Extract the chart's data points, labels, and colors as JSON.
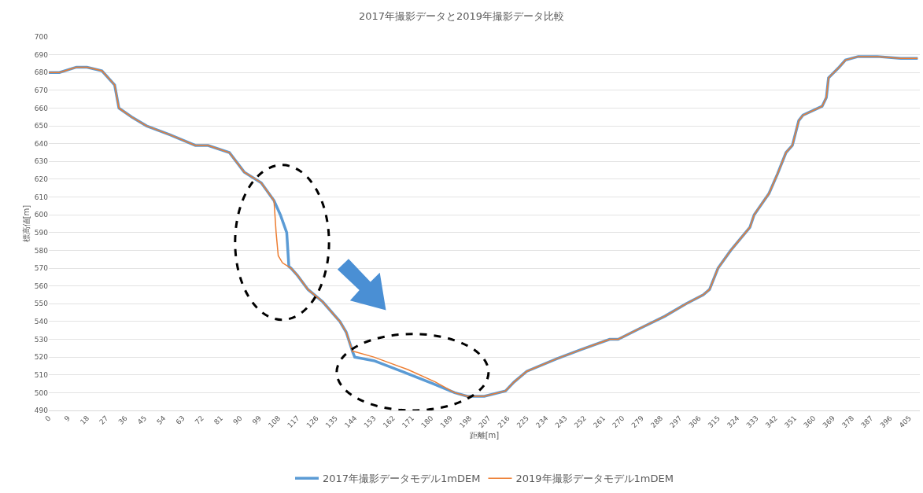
{
  "chart_data": {
    "type": "line",
    "title": "2017年撮影データと2019年撮影データ比較",
    "xlabel": "距離[m]",
    "ylabel": "標高値[m]",
    "xlim": [
      0,
      410
    ],
    "xticks": [
      0,
      9,
      18,
      27,
      36,
      45,
      54,
      63,
      72,
      81,
      90,
      99,
      108,
      117,
      126,
      135,
      144,
      153,
      162,
      171,
      180,
      189,
      198,
      207,
      216,
      225,
      234,
      243,
      252,
      261,
      270,
      279,
      288,
      297,
      306,
      315,
      324,
      333,
      342,
      351,
      360,
      369,
      378,
      387,
      396,
      405
    ],
    "ylim": [
      490,
      700
    ],
    "yticks": [
      490,
      500,
      510,
      520,
      530,
      540,
      550,
      560,
      570,
      580,
      590,
      600,
      610,
      620,
      630,
      640,
      650,
      660,
      670,
      680,
      690,
      700
    ],
    "grid": "y",
    "legend": "bottom",
    "line_style": "solid",
    "marker": "none",
    "series": [
      {
        "name": "2017年撮影データモデル1mDEM",
        "color": "#5b9bd5",
        "x": [
          0,
          5,
          13,
          18,
          25,
          31,
          33,
          39,
          46,
          57,
          69,
          75,
          85,
          92,
          100,
          106,
          109,
          112,
          113,
          114,
          117,
          122,
          129,
          137,
          140,
          143,
          144,
          153,
          166,
          181,
          191,
          197,
          205,
          215,
          219,
          225,
          239,
          250,
          264,
          268,
          278,
          290,
          300,
          308,
          311,
          315,
          321,
          330,
          332,
          339,
          343,
          347,
          350,
          353,
          355,
          364,
          366,
          367,
          372,
          375,
          381,
          390,
          401,
          409
        ],
        "values": [
          680,
          680,
          683,
          683,
          681,
          673,
          660,
          655,
          650,
          645,
          639,
          639,
          635,
          624,
          618,
          608,
          600,
          590,
          571,
          570,
          566,
          558,
          551,
          540,
          534,
          523,
          520,
          518,
          512,
          505,
          500,
          498,
          498,
          501,
          506,
          512,
          519,
          524,
          530,
          530,
          536,
          543,
          550,
          555,
          558,
          570,
          580,
          593,
          600,
          612,
          623,
          635,
          639,
          653,
          656,
          661,
          666,
          677,
          683,
          687,
          689,
          689,
          688,
          688
        ]
      },
      {
        "name": "2019年撮影データモデル1mDEM",
        "color": "#ed7d31",
        "x": [
          0,
          5,
          13,
          18,
          25,
          31,
          33,
          39,
          46,
          57,
          69,
          75,
          85,
          92,
          100,
          106,
          107,
          108,
          110,
          114,
          117,
          122,
          129,
          137,
          140,
          143,
          144,
          153,
          169,
          182,
          191,
          197,
          205,
          215,
          219,
          225,
          239,
          250,
          264,
          268,
          278,
          290,
          300,
          308,
          311,
          315,
          321,
          330,
          332,
          339,
          343,
          347,
          350,
          353,
          355,
          364,
          366,
          367,
          372,
          375,
          381,
          390,
          401,
          409
        ],
        "values": [
          680,
          680,
          683,
          683,
          681,
          673,
          660,
          655,
          650,
          645,
          639,
          639,
          635,
          624,
          618,
          608,
          590,
          577,
          573,
          570,
          566,
          558,
          551,
          540,
          534,
          523,
          523,
          520,
          513,
          506,
          500,
          498,
          498,
          501,
          506,
          512,
          519,
          524,
          530,
          530,
          536,
          543,
          550,
          555,
          558,
          570,
          580,
          593,
          600,
          612,
          623,
          635,
          639,
          653,
          656,
          661,
          666,
          677,
          683,
          687,
          689,
          689,
          688,
          688
        ]
      }
    ]
  }
}
